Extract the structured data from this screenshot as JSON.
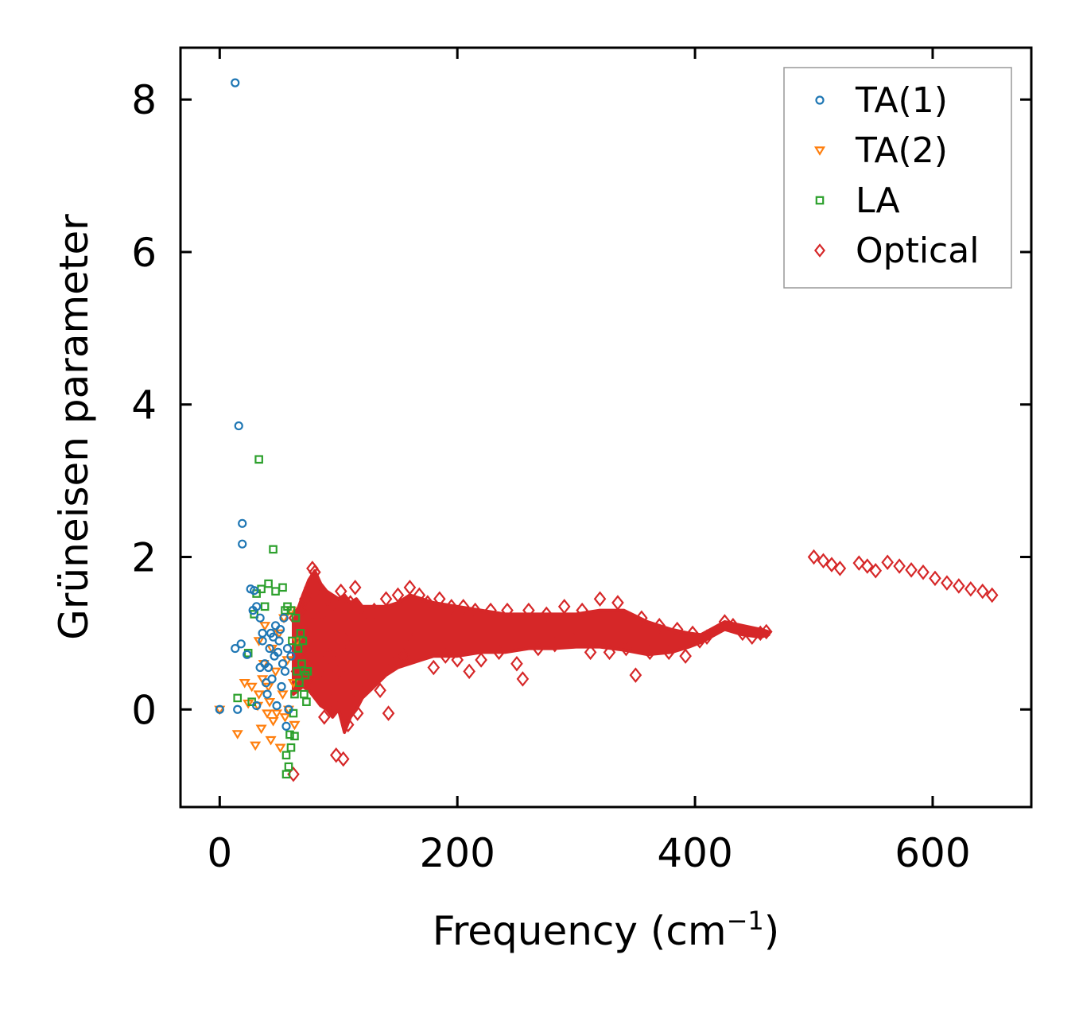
{
  "chart_data": {
    "type": "scatter",
    "title": "",
    "xlabel": "Frequency (cm",
    "xlabel_sup": "−1",
    "xlabel_close": ")",
    "ylabel": "Grüneisen parameter",
    "xlim": [
      -33,
      683
    ],
    "ylim": [
      -1.28,
      8.68
    ],
    "xticks": [
      0,
      200,
      400,
      600
    ],
    "yticks": [
      0,
      2,
      4,
      6,
      8
    ],
    "xtick_labels": [
      "0",
      "200",
      "400",
      "600"
    ],
    "ytick_labels": [
      "0",
      "2",
      "4",
      "6",
      "8"
    ],
    "grid": false,
    "legend_position": "top-right",
    "series": [
      {
        "name": "TA(1)",
        "marker": "circle",
        "color": "#1f77b4",
        "points": [
          [
            13,
            8.22
          ],
          [
            16,
            3.72
          ],
          [
            19,
            2.44
          ],
          [
            19,
            2.17
          ],
          [
            0,
            0.0
          ],
          [
            15,
            0.0
          ],
          [
            13,
            0.8
          ],
          [
            18,
            0.86
          ],
          [
            23,
            0.72
          ],
          [
            26,
            1.58
          ],
          [
            29,
            1.56
          ],
          [
            31,
            0.05
          ],
          [
            28,
            1.3
          ],
          [
            31,
            1.35
          ],
          [
            34,
            0.55
          ],
          [
            36,
            0.9
          ],
          [
            38,
            0.6
          ],
          [
            40,
            0.2
          ],
          [
            42,
            0.8
          ],
          [
            43,
            1.0
          ],
          [
            44,
            0.4
          ],
          [
            46,
            0.7
          ],
          [
            47,
            1.1
          ],
          [
            48,
            0.05
          ],
          [
            50,
            0.9
          ],
          [
            52,
            0.3
          ],
          [
            53,
            0.6
          ],
          [
            54,
            1.2
          ],
          [
            55,
            0.5
          ],
          [
            56,
            -0.22
          ],
          [
            57,
            0.8
          ],
          [
            58,
            0.0
          ],
          [
            60,
            0.7
          ],
          [
            34,
            1.2
          ],
          [
            36,
            1.0
          ],
          [
            41,
            0.55
          ],
          [
            45,
            0.95
          ],
          [
            49,
            0.75
          ],
          [
            51,
            1.05
          ],
          [
            39,
            0.35
          ]
        ]
      },
      {
        "name": "TA(2)",
        "marker": "triangle-down",
        "color": "#ff7f0e",
        "points": [
          [
            0,
            0.0
          ],
          [
            15,
            -0.32
          ],
          [
            21,
            0.35
          ],
          [
            24,
            0.08
          ],
          [
            27,
            0.3
          ],
          [
            30,
            -0.47
          ],
          [
            32,
            0.05
          ],
          [
            33,
            0.9
          ],
          [
            35,
            -0.25
          ],
          [
            37,
            0.6
          ],
          [
            38,
            1.1
          ],
          [
            40,
            -0.05
          ],
          [
            41,
            0.3
          ],
          [
            43,
            -0.4
          ],
          [
            44,
            0.8
          ],
          [
            45,
            -0.15
          ],
          [
            47,
            0.5
          ],
          [
            48,
            -0.05
          ],
          [
            50,
            1.0
          ],
          [
            51,
            -0.5
          ],
          [
            53,
            0.2
          ],
          [
            54,
            1.2
          ],
          [
            55,
            -0.1
          ],
          [
            57,
            0.65
          ],
          [
            58,
            0.0
          ],
          [
            60,
            1.3
          ],
          [
            62,
            0.35
          ],
          [
            63,
            -0.2
          ],
          [
            65,
            0.9
          ],
          [
            33,
            0.2
          ],
          [
            36,
            0.4
          ],
          [
            42,
            0.1
          ]
        ]
      },
      {
        "name": "LA",
        "marker": "square",
        "color": "#2ca02c",
        "points": [
          [
            33,
            3.28
          ],
          [
            45,
            2.1
          ],
          [
            41,
            1.65
          ],
          [
            47,
            1.55
          ],
          [
            53,
            1.6
          ],
          [
            29,
            1.25
          ],
          [
            31,
            1.52
          ],
          [
            35,
            1.58
          ],
          [
            38,
            1.35
          ],
          [
            24,
            0.74
          ],
          [
            15,
            0.15
          ],
          [
            27,
            0.1
          ],
          [
            56,
            -0.85
          ],
          [
            58,
            -0.75
          ],
          [
            56,
            -0.6
          ],
          [
            59,
            -0.33
          ],
          [
            60,
            -0.5
          ],
          [
            62,
            -0.05
          ],
          [
            63,
            0.2
          ],
          [
            65,
            0.5
          ],
          [
            66,
            0.8
          ],
          [
            67,
            0.35
          ],
          [
            69,
            0.6
          ],
          [
            70,
            0.9
          ],
          [
            71,
            0.2
          ],
          [
            72,
            0.45
          ],
          [
            73,
            0.1
          ],
          [
            74,
            0.5
          ],
          [
            55,
            1.3
          ],
          [
            57,
            1.35
          ],
          [
            60,
            1.3
          ],
          [
            64,
            1.2
          ],
          [
            61,
            0.9
          ],
          [
            68,
            1.0
          ],
          [
            63,
            -0.35
          ]
        ]
      },
      {
        "name": "Optical",
        "marker": "diamond",
        "color": "#d62728",
        "points": [
          [
            62,
            -0.85
          ],
          [
            63,
            1.2
          ],
          [
            65,
            0.5
          ],
          [
            68,
            1.3
          ],
          [
            70,
            0.8
          ],
          [
            72,
            1.45
          ],
          [
            74,
            0.4
          ],
          [
            76,
            1.6
          ],
          [
            78,
            1.85
          ],
          [
            80,
            1.8
          ],
          [
            82,
            1.2
          ],
          [
            84,
            0.5
          ],
          [
            86,
            1.5
          ],
          [
            88,
            -0.1
          ],
          [
            90,
            1.3
          ],
          [
            92,
            0.7
          ],
          [
            94,
            0.1
          ],
          [
            96,
            1.4
          ],
          [
            98,
            -0.6
          ],
          [
            100,
            0.5
          ],
          [
            102,
            1.55
          ],
          [
            104,
            -0.65
          ],
          [
            106,
            0.9
          ],
          [
            108,
            -0.2
          ],
          [
            110,
            1.4
          ],
          [
            112,
            0.1
          ],
          [
            114,
            1.6
          ],
          [
            116,
            -0.05
          ],
          [
            120,
            1.2
          ],
          [
            125,
            0.3
          ],
          [
            130,
            1.3
          ],
          [
            135,
            0.25
          ],
          [
            140,
            1.45
          ],
          [
            142,
            -0.05
          ],
          [
            145,
            0.6
          ],
          [
            150,
            1.5
          ],
          [
            155,
            0.7
          ],
          [
            160,
            1.6
          ],
          [
            162,
            0.9
          ],
          [
            168,
            1.5
          ],
          [
            175,
            1.4
          ],
          [
            180,
            0.55
          ],
          [
            185,
            1.45
          ],
          [
            190,
            0.7
          ],
          [
            195,
            1.35
          ],
          [
            200,
            0.65
          ],
          [
            205,
            1.35
          ],
          [
            210,
            0.5
          ],
          [
            215,
            1.3
          ],
          [
            220,
            0.65
          ],
          [
            228,
            1.3
          ],
          [
            235,
            0.75
          ],
          [
            242,
            1.3
          ],
          [
            250,
            0.6
          ],
          [
            255,
            0.4
          ],
          [
            260,
            1.3
          ],
          [
            268,
            0.8
          ],
          [
            275,
            1.25
          ],
          [
            282,
            0.85
          ],
          [
            290,
            1.35
          ],
          [
            298,
            0.9
          ],
          [
            305,
            1.3
          ],
          [
            312,
            0.75
          ],
          [
            320,
            1.45
          ],
          [
            328,
            0.75
          ],
          [
            335,
            1.4
          ],
          [
            342,
            0.8
          ],
          [
            350,
            0.45
          ],
          [
            355,
            1.2
          ],
          [
            362,
            0.75
          ],
          [
            370,
            1.1
          ],
          [
            378,
            0.75
          ],
          [
            385,
            1.05
          ],
          [
            392,
            0.7
          ],
          [
            398,
            1.0
          ],
          [
            404,
            0.9
          ],
          [
            410,
            0.95
          ],
          [
            425,
            1.15
          ],
          [
            432,
            1.1
          ],
          [
            440,
            1.0
          ],
          [
            448,
            0.95
          ],
          [
            455,
            1.0
          ],
          [
            460,
            1.02
          ],
          [
            500,
            2.0
          ],
          [
            508,
            1.95
          ],
          [
            515,
            1.9
          ],
          [
            522,
            1.85
          ],
          [
            538,
            1.92
          ],
          [
            545,
            1.88
          ],
          [
            552,
            1.82
          ],
          [
            562,
            1.93
          ],
          [
            572,
            1.88
          ],
          [
            582,
            1.83
          ],
          [
            592,
            1.8
          ],
          [
            602,
            1.72
          ],
          [
            612,
            1.66
          ],
          [
            622,
            1.62
          ],
          [
            632,
            1.58
          ],
          [
            642,
            1.55
          ],
          [
            650,
            1.5
          ]
        ]
      }
    ],
    "optical_band": {
      "x": [
        62,
        70,
        75,
        80,
        85,
        90,
        95,
        100,
        105,
        110,
        115,
        120,
        130,
        140,
        150,
        160,
        170,
        180,
        200,
        220,
        240,
        260,
        280,
        300,
        320,
        340,
        360,
        380,
        395,
        405,
        425,
        440,
        455,
        462
      ],
      "upper": [
        1.15,
        1.5,
        1.7,
        1.82,
        1.65,
        1.55,
        1.5,
        1.45,
        1.5,
        1.4,
        1.45,
        1.35,
        1.35,
        1.35,
        1.4,
        1.5,
        1.45,
        1.4,
        1.35,
        1.3,
        1.25,
        1.25,
        1.25,
        1.25,
        1.3,
        1.3,
        1.15,
        1.05,
        1.0,
        0.98,
        1.15,
        1.1,
        1.05,
        1.02
      ],
      "lower": [
        0.2,
        0.3,
        0.25,
        0.15,
        0.05,
        0.0,
        -0.1,
        0.0,
        -0.3,
        -0.1,
        0.0,
        0.15,
        0.3,
        0.45,
        0.55,
        0.6,
        0.65,
        0.7,
        0.7,
        0.75,
        0.75,
        0.8,
        0.8,
        0.82,
        0.82,
        0.78,
        0.72,
        0.75,
        0.82,
        0.88,
        1.05,
        0.98,
        0.95,
        0.98
      ]
    }
  }
}
